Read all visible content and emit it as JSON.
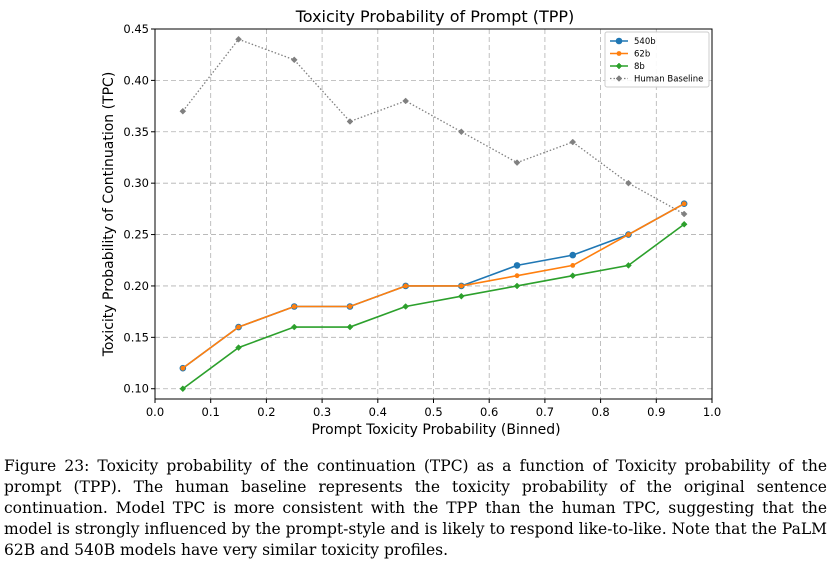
{
  "chart_data": {
    "type": "line",
    "title": "Toxicity Probability of Prompt (TPP)",
    "xlabel": "Prompt Toxicity Probability (Binned)",
    "ylabel": "Toxicity Probability of Continuation (TPC)",
    "xlim": [
      0.0,
      1.0
    ],
    "ylim": [
      0.09,
      0.45
    ],
    "xticks": [
      "0.0",
      "0.1",
      "0.2",
      "0.3",
      "0.4",
      "0.5",
      "0.6",
      "0.7",
      "0.8",
      "0.9",
      "1.0"
    ],
    "yticks": [
      "0.10",
      "0.15",
      "0.20",
      "0.25",
      "0.30",
      "0.35",
      "0.40",
      "0.45"
    ],
    "grid": true,
    "legend_position": "top-right",
    "x": [
      0.05,
      0.15,
      0.25,
      0.35,
      0.45,
      0.55,
      0.65,
      0.75,
      0.85,
      0.95
    ],
    "series": [
      {
        "name": "540b",
        "color": "#1f77b4",
        "marker": "circle",
        "style": "solid",
        "values": [
          0.12,
          0.16,
          0.18,
          0.18,
          0.2,
          0.2,
          0.22,
          0.23,
          0.25,
          0.28
        ]
      },
      {
        "name": "62b",
        "color": "#ff7f0e",
        "marker": "circle-small",
        "style": "solid",
        "values": [
          0.12,
          0.16,
          0.18,
          0.18,
          0.2,
          0.2,
          0.21,
          0.22,
          0.25,
          0.28
        ]
      },
      {
        "name": "8b",
        "color": "#2ca02c",
        "marker": "diamond",
        "style": "solid",
        "values": [
          0.1,
          0.14,
          0.16,
          0.16,
          0.18,
          0.19,
          0.2,
          0.21,
          0.22,
          0.26
        ]
      },
      {
        "name": "Human Baseline",
        "color": "#808080",
        "marker": "diamond",
        "style": "dotted",
        "values": [
          0.37,
          0.44,
          0.42,
          0.36,
          0.38,
          0.35,
          0.32,
          0.34,
          0.3,
          0.27
        ]
      }
    ]
  },
  "caption": "Figure 23:  Toxicity probability of the continuation (TPC) as a function of Toxicity probability of the prompt (TPP). The human baseline represents the toxicity probability of the original sentence continuation. Model TPC is more consistent with the TPP than the human TPC, suggesting that the model is strongly influenced by the prompt-style and is likely to respond like-to-like. Note that the PaLM 62B and 540B models have very similar toxicity profiles."
}
